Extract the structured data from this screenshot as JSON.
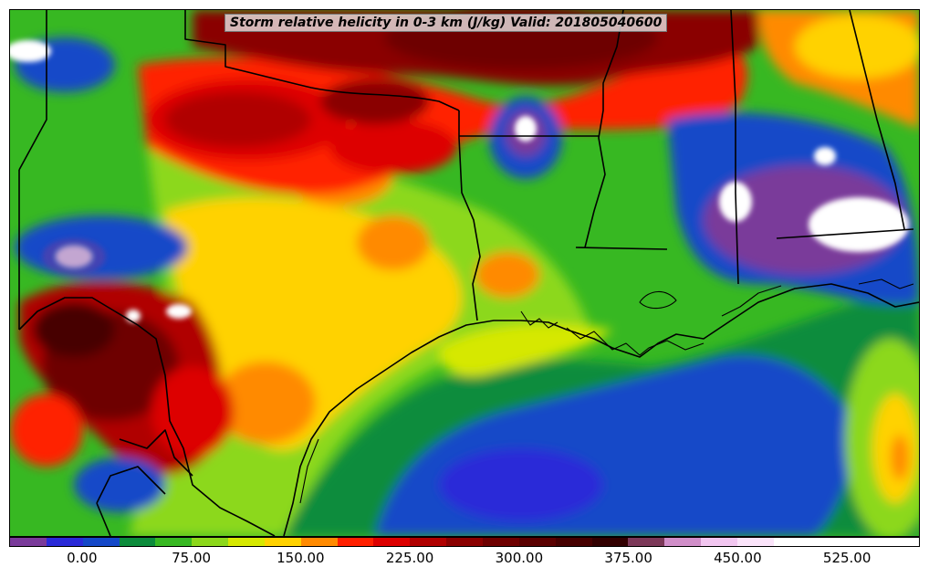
{
  "title": "Storm relative helicity in 0-3 km (J/kg) Valid: 201805040600",
  "colorbar": {
    "min": -50,
    "max": 575,
    "step": 25,
    "colors": [
      "#7a3a9a",
      "#2a2ad8",
      "#1448c8",
      "#0c8c3c",
      "#37b822",
      "#8cd81a",
      "#d6e800",
      "#ffd200",
      "#ff8a00",
      "#ff2000",
      "#dd0000",
      "#b00000",
      "#8a0000",
      "#6e0000",
      "#5a0000",
      "#460000",
      "#320000",
      "#7c3858",
      "#d08ec8",
      "#f2c6f0",
      "#fbe4fa",
      "#ffffff",
      "#ffffff",
      "#ffffff",
      "#ffffff"
    ],
    "tick_labels": [
      "0.00",
      "75.00",
      "150.00",
      "225.00",
      "300.00",
      "375.00",
      "450.00",
      "525.00"
    ],
    "tick_values": [
      0,
      75,
      150,
      225,
      300,
      375,
      450,
      525
    ]
  }
}
